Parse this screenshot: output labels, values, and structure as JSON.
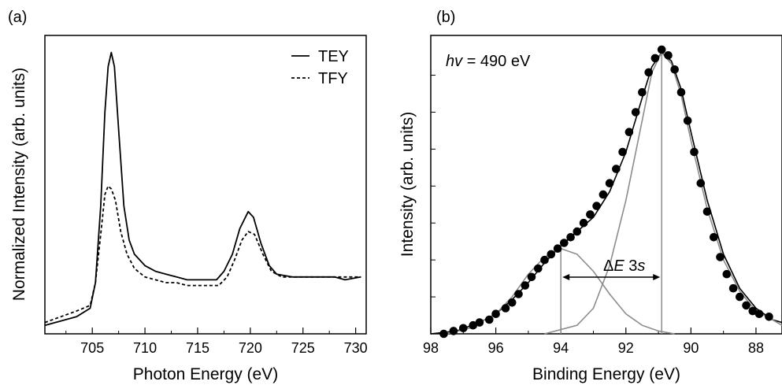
{
  "chart_data": [
    {
      "panel_label": "(a)",
      "type": "line",
      "xlabel": "Photon Energy (eV)",
      "ylabel": "Normalized Intensity (arb. units)",
      "xlim": [
        700.5,
        731
      ],
      "ylim": [
        0,
        1.05
      ],
      "x_ticks": [
        705,
        710,
        715,
        720,
        725,
        730
      ],
      "legend_position": "top-right",
      "series": [
        {
          "name": "TEY",
          "style": "solid",
          "color": "#000000",
          "points": [
            [
              700.5,
              0.03
            ],
            [
              702,
              0.045
            ],
            [
              703.5,
              0.06
            ],
            [
              704.8,
              0.09
            ],
            [
              705.3,
              0.18
            ],
            [
              705.8,
              0.45
            ],
            [
              706.2,
              0.78
            ],
            [
              706.5,
              0.94
            ],
            [
              706.8,
              0.99
            ],
            [
              707.1,
              0.94
            ],
            [
              707.5,
              0.72
            ],
            [
              708,
              0.45
            ],
            [
              708.5,
              0.33
            ],
            [
              709,
              0.28
            ],
            [
              710,
              0.24
            ],
            [
              711,
              0.22
            ],
            [
              712,
              0.21
            ],
            [
              713,
              0.2
            ],
            [
              714,
              0.19
            ],
            [
              715,
              0.19
            ],
            [
              716,
              0.19
            ],
            [
              716.8,
              0.19
            ],
            [
              717.5,
              0.22
            ],
            [
              718.3,
              0.28
            ],
            [
              719,
              0.37
            ],
            [
              719.8,
              0.43
            ],
            [
              720.3,
              0.41
            ],
            [
              721,
              0.32
            ],
            [
              721.8,
              0.24
            ],
            [
              722.5,
              0.21
            ],
            [
              724,
              0.2
            ],
            [
              726,
              0.2
            ],
            [
              728,
              0.2
            ],
            [
              729,
              0.19
            ],
            [
              730.5,
              0.2
            ]
          ]
        },
        {
          "name": "TFY",
          "style": "dashed",
          "color": "#000000",
          "points": [
            [
              700.5,
              0.04
            ],
            [
              702,
              0.06
            ],
            [
              703.5,
              0.08
            ],
            [
              704.8,
              0.1
            ],
            [
              705.3,
              0.18
            ],
            [
              705.8,
              0.35
            ],
            [
              706.2,
              0.49
            ],
            [
              706.5,
              0.52
            ],
            [
              706.8,
              0.51
            ],
            [
              707.2,
              0.47
            ],
            [
              707.7,
              0.36
            ],
            [
              708.3,
              0.28
            ],
            [
              709,
              0.23
            ],
            [
              710,
              0.2
            ],
            [
              711,
              0.19
            ],
            [
              712,
              0.18
            ],
            [
              713,
              0.18
            ],
            [
              714,
              0.17
            ],
            [
              715,
              0.17
            ],
            [
              716,
              0.17
            ],
            [
              717,
              0.17
            ],
            [
              717.8,
              0.2
            ],
            [
              718.5,
              0.26
            ],
            [
              719.2,
              0.33
            ],
            [
              719.8,
              0.36
            ],
            [
              720.4,
              0.35
            ],
            [
              721.2,
              0.28
            ],
            [
              722,
              0.22
            ],
            [
              723,
              0.2
            ],
            [
              725,
              0.2
            ],
            [
              727,
              0.2
            ],
            [
              728.5,
              0.2
            ],
            [
              730.5,
              0.2
            ]
          ]
        }
      ]
    },
    {
      "panel_label": "(b)",
      "type": "scatter",
      "xlabel": "Binding Energy (eV)",
      "ylabel": "Intensity (arb. units)",
      "xlim": [
        98,
        87.2
      ],
      "ylim": [
        0,
        1.05
      ],
      "x_ticks": [
        98,
        96,
        94,
        92,
        90,
        88
      ],
      "annotation_hv": "= 490 eV",
      "annotation_de": "3",
      "peak_positions": [
        94,
        90.9
      ],
      "series": [
        {
          "type": "scatter",
          "color": "#000000",
          "points": [
            [
              97.6,
              0.0
            ],
            [
              97.3,
              0.01
            ],
            [
              97.0,
              0.02
            ],
            [
              96.7,
              0.03
            ],
            [
              96.5,
              0.04
            ],
            [
              96.2,
              0.05
            ],
            [
              96.0,
              0.07
            ],
            [
              95.7,
              0.09
            ],
            [
              95.5,
              0.11
            ],
            [
              95.3,
              0.14
            ],
            [
              95.1,
              0.17
            ],
            [
              94.9,
              0.2
            ],
            [
              94.7,
              0.23
            ],
            [
              94.5,
              0.26
            ],
            [
              94.3,
              0.28
            ],
            [
              94.1,
              0.3
            ],
            [
              93.9,
              0.32
            ],
            [
              93.7,
              0.34
            ],
            [
              93.5,
              0.36
            ],
            [
              93.3,
              0.39
            ],
            [
              93.1,
              0.42
            ],
            [
              92.9,
              0.45
            ],
            [
              92.7,
              0.49
            ],
            [
              92.5,
              0.53
            ],
            [
              92.3,
              0.58
            ],
            [
              92.1,
              0.64
            ],
            [
              91.9,
              0.71
            ],
            [
              91.7,
              0.78
            ],
            [
              91.5,
              0.85
            ],
            [
              91.3,
              0.92
            ],
            [
              91.1,
              0.97
            ],
            [
              90.9,
              1.0
            ],
            [
              90.7,
              0.98
            ],
            [
              90.5,
              0.93
            ],
            [
              90.3,
              0.85
            ],
            [
              90.1,
              0.75
            ],
            [
              89.9,
              0.64
            ],
            [
              89.7,
              0.53
            ],
            [
              89.5,
              0.43
            ],
            [
              89.3,
              0.34
            ],
            [
              89.1,
              0.27
            ],
            [
              88.9,
              0.21
            ],
            [
              88.7,
              0.16
            ],
            [
              88.5,
              0.13
            ],
            [
              88.3,
              0.1
            ],
            [
              88.1,
              0.08
            ],
            [
              87.9,
              0.07
            ],
            [
              87.6,
              0.06
            ]
          ]
        },
        {
          "type": "line",
          "color": "#000000",
          "points": [
            [
              98,
              0.0
            ],
            [
              97.2,
              0.01
            ],
            [
              96.5,
              0.04
            ],
            [
              96,
              0.07
            ],
            [
              95.5,
              0.12
            ],
            [
              95,
              0.18
            ],
            [
              94.5,
              0.25
            ],
            [
              94,
              0.31
            ],
            [
              93.5,
              0.36
            ],
            [
              93,
              0.41
            ],
            [
              92.5,
              0.5
            ],
            [
              92,
              0.64
            ],
            [
              91.5,
              0.83
            ],
            [
              91.2,
              0.94
            ],
            [
              90.9,
              0.99
            ],
            [
              90.6,
              0.96
            ],
            [
              90.3,
              0.86
            ],
            [
              90,
              0.71
            ],
            [
              89.5,
              0.47
            ],
            [
              89,
              0.28
            ],
            [
              88.5,
              0.16
            ],
            [
              88,
              0.09
            ],
            [
              87.5,
              0.05
            ],
            [
              87.2,
              0.04
            ]
          ]
        },
        {
          "type": "line",
          "color": "#8c8c8c",
          "points": [
            [
              97.5,
              0.0
            ],
            [
              96.8,
              0.02
            ],
            [
              96,
              0.07
            ],
            [
              95.5,
              0.13
            ],
            [
              95,
              0.21
            ],
            [
              94.5,
              0.27
            ],
            [
              94,
              0.3
            ],
            [
              93.5,
              0.28
            ],
            [
              93,
              0.22
            ],
            [
              92.5,
              0.14
            ],
            [
              92,
              0.07
            ],
            [
              91.5,
              0.03
            ],
            [
              91,
              0.01
            ],
            [
              90.5,
              0.0
            ]
          ]
        },
        {
          "type": "line",
          "color": "#8c8c8c",
          "points": [
            [
              94.5,
              0.0
            ],
            [
              93.5,
              0.03
            ],
            [
              93,
              0.09
            ],
            [
              92.5,
              0.24
            ],
            [
              92,
              0.47
            ],
            [
              91.5,
              0.75
            ],
            [
              91.2,
              0.92
            ],
            [
              90.9,
              0.99
            ],
            [
              90.6,
              0.95
            ],
            [
              90.3,
              0.84
            ],
            [
              90,
              0.68
            ],
            [
              89.5,
              0.44
            ],
            [
              89,
              0.26
            ],
            [
              88.5,
              0.15
            ],
            [
              88,
              0.08
            ],
            [
              87.5,
              0.05
            ],
            [
              87.2,
              0.03
            ]
          ]
        }
      ]
    }
  ]
}
